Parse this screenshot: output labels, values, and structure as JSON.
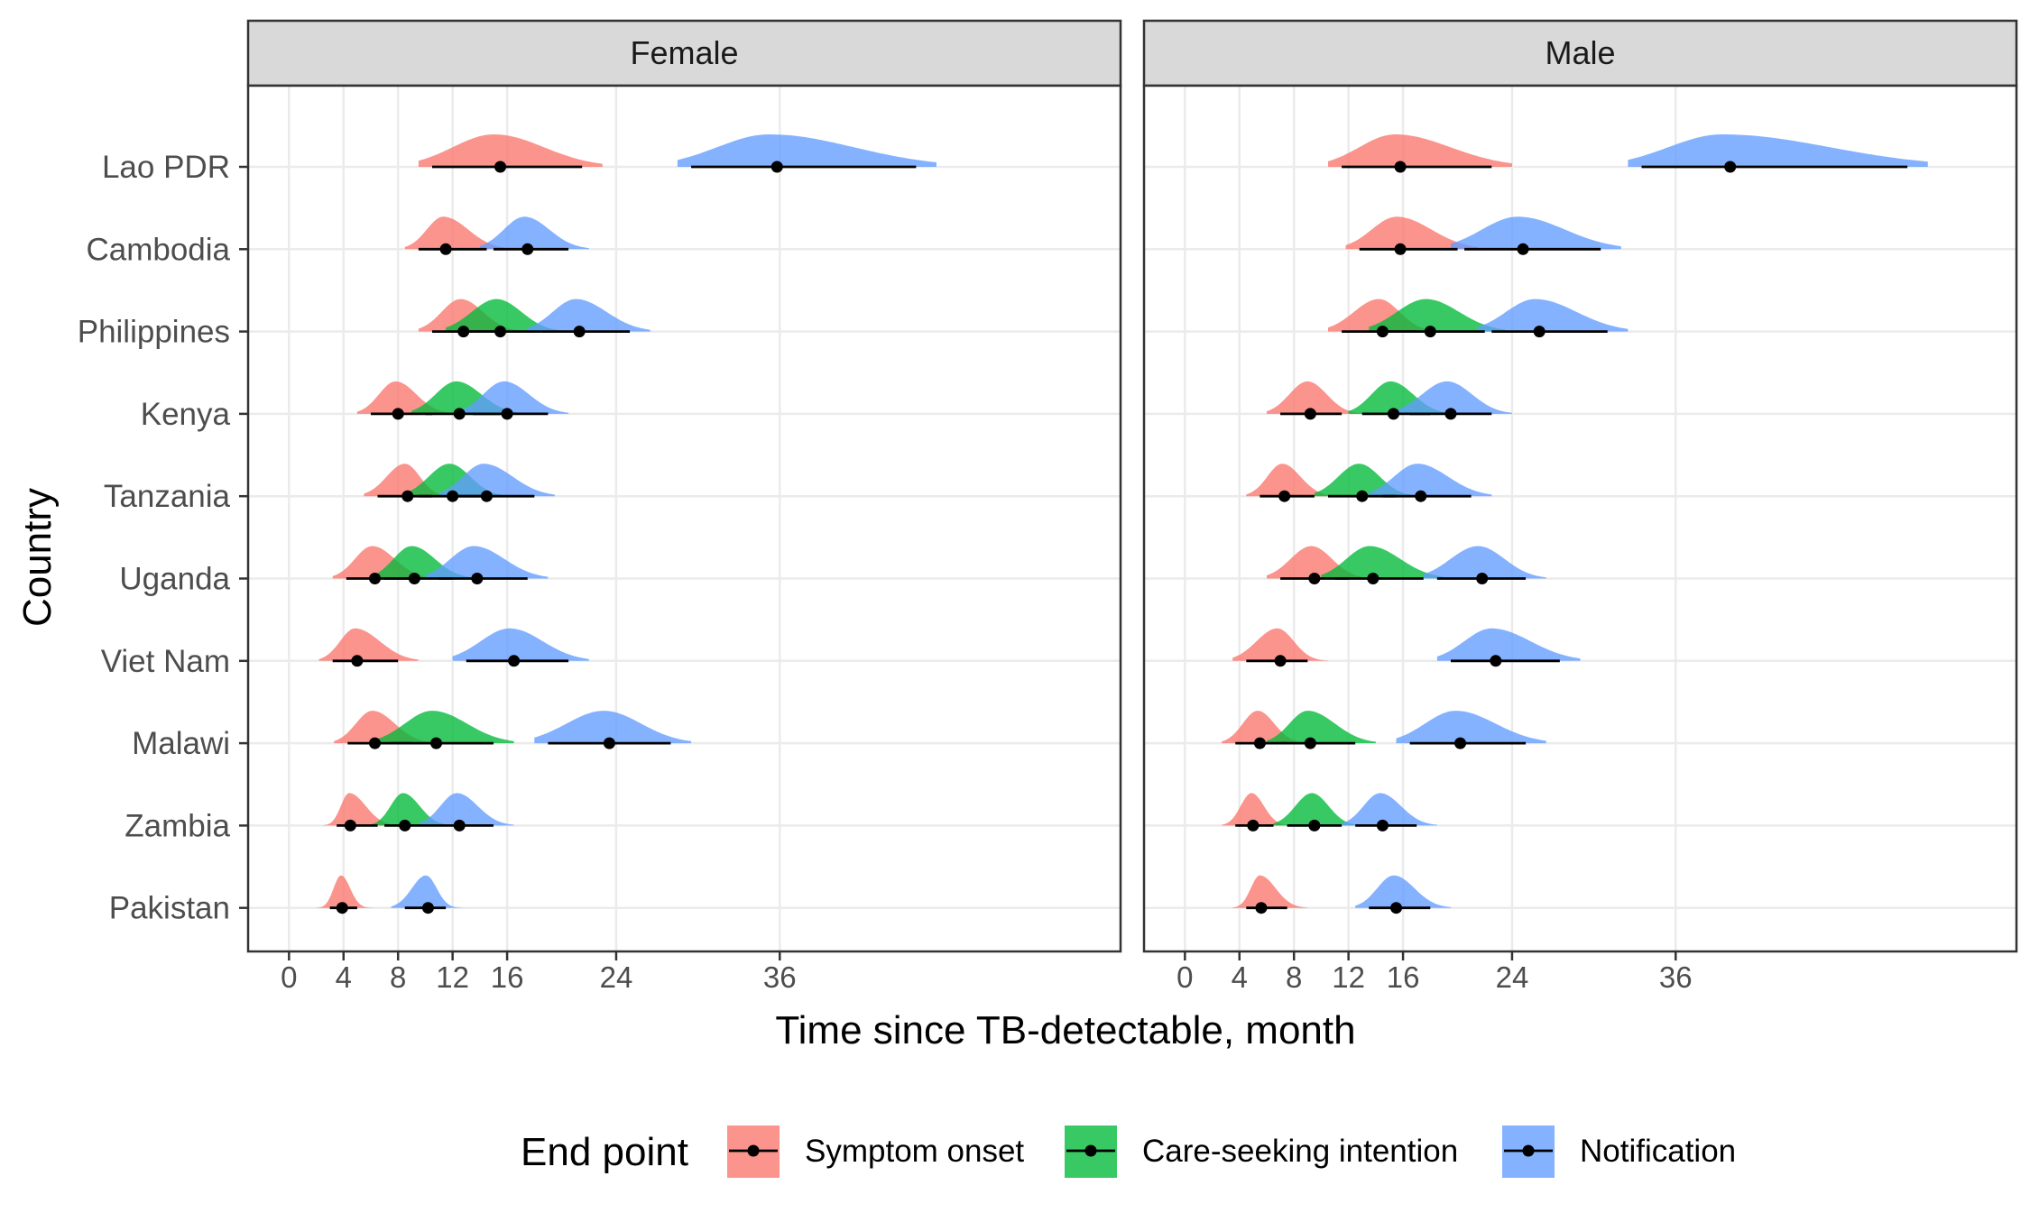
{
  "chart_data": {
    "type": "ridgeline-pointrange",
    "xlabel": "Time since TB-detectable, month",
    "ylabel": "Country",
    "xticks": [
      0,
      4,
      8,
      12,
      16,
      24,
      36
    ],
    "xlim": [
      -3,
      61
    ],
    "grid": true,
    "legend": {
      "title": "End point",
      "position": "bottom",
      "items": [
        {
          "key": "symptom",
          "label": "Symptom onset",
          "color": "#F8766D"
        },
        {
          "key": "care",
          "label": "Care-seeking intention",
          "color": "#00BA38"
        },
        {
          "key": "notif",
          "label": "Notification",
          "color": "#619CFF"
        }
      ]
    },
    "countries": [
      "Lao PDR",
      "Cambodia",
      "Philippines",
      "Kenya",
      "Tanzania",
      "Uganda",
      "Viet Nam",
      "Malawi",
      "Zambia",
      "Pakistan"
    ],
    "panels": [
      {
        "label": "Female",
        "series": {
          "symptom": [
            {
              "country": "Lao PDR",
              "median": 15.5,
              "lo": 10.5,
              "hi": 21.5
            },
            {
              "country": "Cambodia",
              "median": 11.5,
              "lo": 9.5,
              "hi": 14.5
            },
            {
              "country": "Philippines",
              "median": 12.8,
              "lo": 10.5,
              "hi": 15.5
            },
            {
              "country": "Kenya",
              "median": 8.0,
              "lo": 6.0,
              "hi": 10.5
            },
            {
              "country": "Tanzania",
              "median": 8.7,
              "lo": 6.5,
              "hi": 10.5
            },
            {
              "country": "Uganda",
              "median": 6.3,
              "lo": 4.2,
              "hi": 9.0
            },
            {
              "country": "Viet Nam",
              "median": 5.0,
              "lo": 3.2,
              "hi": 8.0
            },
            {
              "country": "Malawi",
              "median": 6.3,
              "lo": 4.3,
              "hi": 9.0
            },
            {
              "country": "Zambia",
              "median": 4.5,
              "lo": 3.5,
              "hi": 6.5
            },
            {
              "country": "Pakistan",
              "median": 3.9,
              "lo": 3.0,
              "hi": 5.0
            }
          ],
          "care": [
            {
              "country": "Philippines",
              "median": 15.5,
              "lo": 12.5,
              "hi": 18.5
            },
            {
              "country": "Kenya",
              "median": 12.5,
              "lo": 10.0,
              "hi": 15.5
            },
            {
              "country": "Tanzania",
              "median": 12.0,
              "lo": 9.5,
              "hi": 14.5
            },
            {
              "country": "Uganda",
              "median": 9.2,
              "lo": 7.0,
              "hi": 12.0
            },
            {
              "country": "Malawi",
              "median": 10.8,
              "lo": 7.5,
              "hi": 15.0
            },
            {
              "country": "Zambia",
              "median": 8.5,
              "lo": 7.0,
              "hi": 10.5
            }
          ],
          "notif": [
            {
              "country": "Lao PDR",
              "median": 35.8,
              "lo": 29.5,
              "hi": 46.0
            },
            {
              "country": "Cambodia",
              "median": 17.5,
              "lo": 15.0,
              "hi": 20.5
            },
            {
              "country": "Philippines",
              "median": 21.3,
              "lo": 18.5,
              "hi": 25.0
            },
            {
              "country": "Kenya",
              "median": 16.0,
              "lo": 13.5,
              "hi": 19.0
            },
            {
              "country": "Tanzania",
              "median": 14.5,
              "lo": 12.0,
              "hi": 18.0
            },
            {
              "country": "Uganda",
              "median": 13.8,
              "lo": 11.0,
              "hi": 17.5
            },
            {
              "country": "Viet Nam",
              "median": 16.5,
              "lo": 13.0,
              "hi": 20.5
            },
            {
              "country": "Malawi",
              "median": 23.5,
              "lo": 19.0,
              "hi": 28.0
            },
            {
              "country": "Zambia",
              "median": 12.5,
              "lo": 10.5,
              "hi": 15.0
            },
            {
              "country": "Pakistan",
              "median": 10.2,
              "lo": 8.5,
              "hi": 11.5
            }
          ]
        }
      },
      {
        "label": "Male",
        "series": {
          "symptom": [
            {
              "country": "Lao PDR",
              "median": 15.8,
              "lo": 11.5,
              "hi": 22.5
            },
            {
              "country": "Cambodia",
              "median": 15.8,
              "lo": 12.8,
              "hi": 20.0
            },
            {
              "country": "Philippines",
              "median": 14.5,
              "lo": 11.5,
              "hi": 17.0
            },
            {
              "country": "Kenya",
              "median": 9.2,
              "lo": 7.0,
              "hi": 11.5
            },
            {
              "country": "Tanzania",
              "median": 7.3,
              "lo": 5.5,
              "hi": 9.5
            },
            {
              "country": "Uganda",
              "median": 9.5,
              "lo": 7.0,
              "hi": 12.0
            },
            {
              "country": "Viet Nam",
              "median": 7.0,
              "lo": 4.5,
              "hi": 9.0
            },
            {
              "country": "Malawi",
              "median": 5.5,
              "lo": 3.7,
              "hi": 7.5
            },
            {
              "country": "Zambia",
              "median": 5.0,
              "lo": 3.7,
              "hi": 6.5
            },
            {
              "country": "Pakistan",
              "median": 5.6,
              "lo": 4.5,
              "hi": 7.5
            }
          ],
          "care": [
            {
              "country": "Philippines",
              "median": 18.0,
              "lo": 14.5,
              "hi": 22.0
            },
            {
              "country": "Kenya",
              "median": 15.3,
              "lo": 13.0,
              "hi": 18.0
            },
            {
              "country": "Tanzania",
              "median": 13.0,
              "lo": 10.5,
              "hi": 15.5
            },
            {
              "country": "Uganda",
              "median": 13.8,
              "lo": 11.0,
              "hi": 17.5
            },
            {
              "country": "Malawi",
              "median": 9.2,
              "lo": 7.0,
              "hi": 12.5
            },
            {
              "country": "Zambia",
              "median": 9.5,
              "lo": 7.5,
              "hi": 11.5
            }
          ],
          "notif": [
            {
              "country": "Lao PDR",
              "median": 40.0,
              "lo": 33.5,
              "hi": 53.0
            },
            {
              "country": "Cambodia",
              "median": 24.8,
              "lo": 20.5,
              "hi": 30.5
            },
            {
              "country": "Philippines",
              "median": 26.0,
              "lo": 22.5,
              "hi": 31.0
            },
            {
              "country": "Kenya",
              "median": 19.5,
              "lo": 16.5,
              "hi": 22.5
            },
            {
              "country": "Tanzania",
              "median": 17.3,
              "lo": 14.5,
              "hi": 21.0
            },
            {
              "country": "Uganda",
              "median": 21.8,
              "lo": 18.5,
              "hi": 25.0
            },
            {
              "country": "Viet Nam",
              "median": 22.8,
              "lo": 19.5,
              "hi": 27.5
            },
            {
              "country": "Malawi",
              "median": 20.2,
              "lo": 16.5,
              "hi": 25.0
            },
            {
              "country": "Zambia",
              "median": 14.5,
              "lo": 12.5,
              "hi": 17.0
            },
            {
              "country": "Pakistan",
              "median": 15.5,
              "lo": 13.5,
              "hi": 18.0
            }
          ]
        }
      }
    ]
  }
}
